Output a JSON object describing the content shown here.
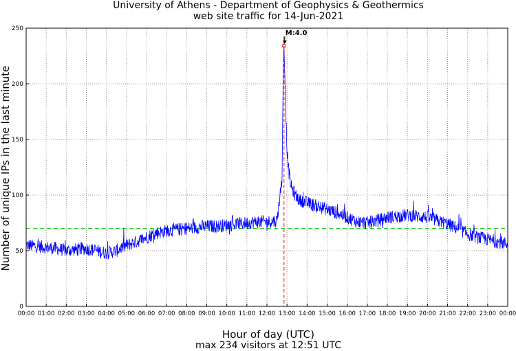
{
  "chart_data": {
    "type": "line",
    "title": "University of Athens - Department of Geophysics & Geothermics",
    "subtitle": "web site traffic for 14-Jun-2021",
    "xlabel": "Hour of day (UTC)",
    "ylabel": "Number of unique IPs in the last minute",
    "summary": "max 234 visitors at 12:51 UTC",
    "xlim": [
      0,
      24
    ],
    "ylim": [
      0,
      250
    ],
    "xticks": [
      "00:00",
      "01:00",
      "02:00",
      "03:00",
      "04:00",
      "05:00",
      "06:00",
      "07:00",
      "08:00",
      "09:00",
      "10:00",
      "11:00",
      "12:00",
      "13:00",
      "14:00",
      "15:00",
      "16:00",
      "17:00",
      "18:00",
      "19:00",
      "20:00",
      "21:00",
      "22:00",
      "23:00",
      "00:00"
    ],
    "yticks": [
      0,
      50,
      100,
      150,
      200,
      250
    ],
    "grid": true,
    "reference_line": {
      "y": 70,
      "color": "#00cc00",
      "style": "dashed"
    },
    "event": {
      "label": "M:4.0",
      "x": 12.85,
      "peak_value": 234,
      "color": "#ff0000"
    },
    "series": [
      {
        "name": "unique IPs",
        "color": "#0000ff",
        "x": [
          0,
          0.5,
          1,
          1.5,
          2,
          2.5,
          3,
          3.5,
          4,
          4.5,
          5,
          5.5,
          6,
          6.5,
          7,
          7.5,
          8,
          8.5,
          9,
          9.5,
          10,
          10.5,
          11,
          11.5,
          12,
          12.5,
          12.75,
          12.82,
          12.85,
          12.9,
          12.95,
          13,
          13.1,
          13.2,
          13.4,
          13.6,
          14,
          14.5,
          15,
          15.5,
          16,
          16.5,
          17,
          17.5,
          18,
          18.5,
          19,
          19.5,
          20,
          20.5,
          21,
          21.5,
          22,
          22.5,
          23,
          23.5,
          24
        ],
        "values": [
          55,
          54,
          53,
          52,
          50,
          51,
          52,
          50,
          48,
          50,
          55,
          58,
          62,
          66,
          68,
          69,
          70,
          71,
          72,
          72,
          73,
          74,
          75,
          76,
          76,
          77,
          115,
          222,
          234,
          200,
          170,
          140,
          120,
          108,
          100,
          96,
          93,
          90,
          87,
          84,
          80,
          76,
          75,
          77,
          80,
          81,
          82,
          81,
          80,
          77,
          74,
          70,
          65,
          62,
          60,
          58,
          56
        ]
      }
    ]
  }
}
